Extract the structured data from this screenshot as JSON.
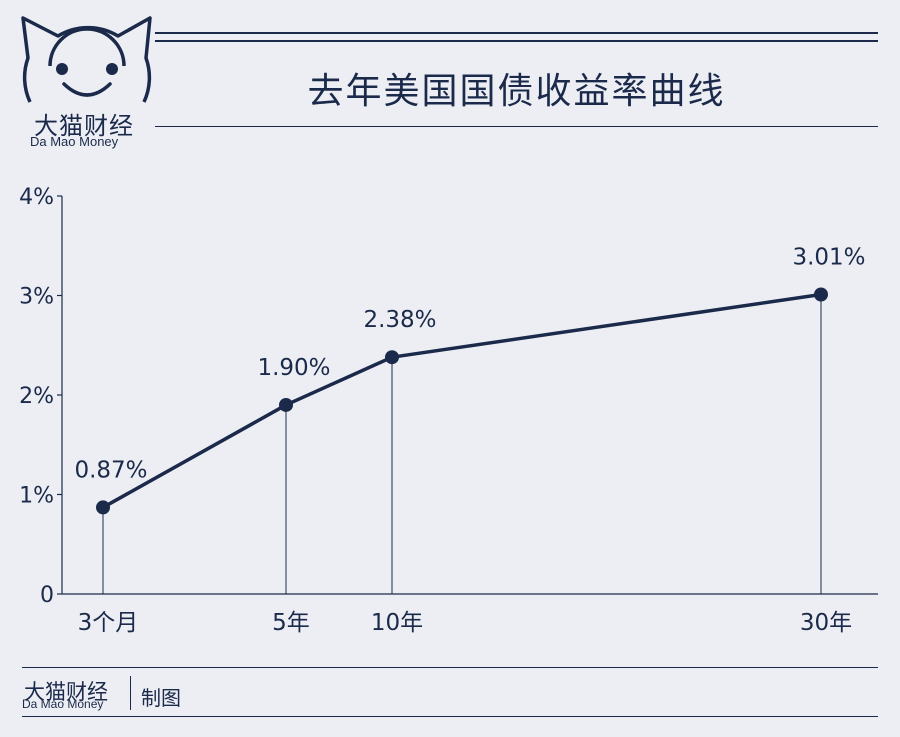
{
  "brand": {
    "name_cn": "大猫财经",
    "name_en": "Da Mao Money",
    "credit": "制图"
  },
  "colors": {
    "background": "#eceef4",
    "ink": "#1b2a4a"
  },
  "chart_data": {
    "type": "line",
    "title": "去年美国国债收益率曲线",
    "categories": [
      "3个月",
      "5年",
      "10年",
      "30年"
    ],
    "values": [
      0.87,
      1.9,
      2.38,
      3.01
    ],
    "value_labels": [
      "0.87%",
      "1.90%",
      "2.38%",
      "3.01%"
    ],
    "y_ticks": [
      "0",
      "1%",
      "2%",
      "3%",
      "4%"
    ],
    "ylim": [
      0,
      4
    ],
    "grid": false
  }
}
